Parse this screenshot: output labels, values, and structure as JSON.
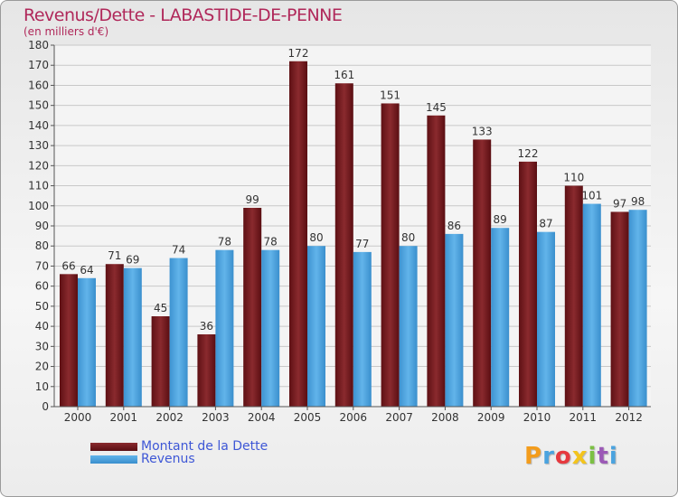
{
  "header": {
    "title": "Revenus/Dette - LABASTIDE-DE-PENNE",
    "subtitle": "(en milliers d'€)"
  },
  "logo": {
    "text": "Proxiti",
    "colors": [
      "#f39c1c",
      "#4aa3df",
      "#e6393f",
      "#f3c41c",
      "#7bc043",
      "#9b59b6",
      "#4aa3df"
    ]
  },
  "colors": {
    "dette": "#7a1a1e",
    "revenus": "#4aa3df",
    "title": "#b0285a",
    "legend_text": "#3e57d6"
  },
  "chart_data": {
    "type": "bar",
    "title": "Revenus/Dette - LABASTIDE-DE-PENNE",
    "subtitle": "(en milliers d'€)",
    "categories": [
      "2000",
      "2001",
      "2002",
      "2003",
      "2004",
      "2005",
      "2006",
      "2007",
      "2008",
      "2009",
      "2010",
      "2011",
      "2012"
    ],
    "series": [
      {
        "name": "Montant de la Dette",
        "values": [
          66,
          71,
          45,
          36,
          99,
          172,
          161,
          151,
          145,
          133,
          122,
          110,
          97
        ]
      },
      {
        "name": "Revenus",
        "values": [
          64,
          69,
          74,
          78,
          78,
          80,
          77,
          80,
          86,
          89,
          87,
          101,
          98
        ]
      }
    ],
    "ylim": [
      0,
      180
    ],
    "yticks": [
      0,
      10,
      20,
      30,
      40,
      50,
      60,
      70,
      80,
      90,
      100,
      110,
      120,
      130,
      140,
      150,
      160,
      170,
      180
    ],
    "grid": true,
    "legend_position": "bottom-left"
  }
}
